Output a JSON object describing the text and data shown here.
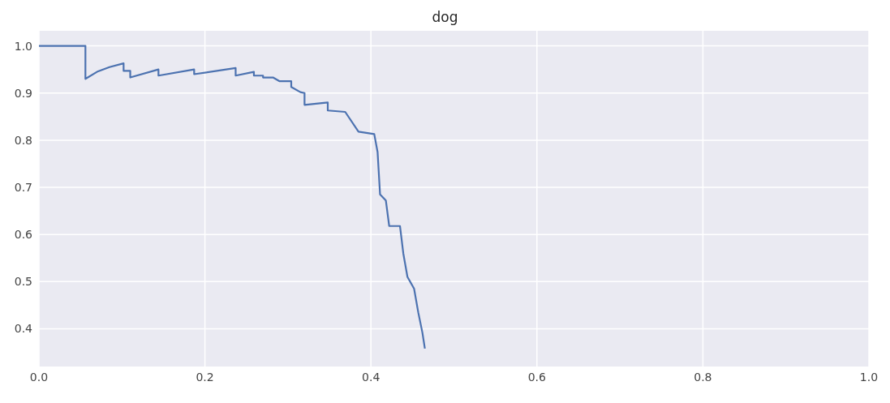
{
  "chart_data": {
    "type": "line",
    "title": "dog",
    "x": [
      0,
      0.056,
      0.056,
      0.07,
      0.085,
      0.102,
      0.102,
      0.11,
      0.11,
      0.144,
      0.144,
      0.187,
      0.187,
      0.237,
      0.237,
      0.259,
      0.259,
      0.27,
      0.27,
      0.282,
      0.29,
      0.304,
      0.304,
      0.315,
      0.32,
      0.32,
      0.348,
      0.348,
      0.369,
      0.385,
      0.404,
      0.408,
      0.411,
      0.418,
      0.422,
      0.435,
      0.439,
      0.444,
      0.452,
      0.457,
      0.462,
      0.465
    ],
    "series": [
      {
        "color": "#4c72b0",
        "values": [
          1,
          1,
          0.93,
          0.945,
          0.955,
          0.963,
          0.947,
          0.947,
          0.933,
          0.95,
          0.937,
          0.95,
          0.94,
          0.953,
          0.937,
          0.945,
          0.937,
          0.937,
          0.933,
          0.933,
          0.925,
          0.925,
          0.913,
          0.902,
          0.9,
          0.875,
          0.88,
          0.863,
          0.86,
          0.818,
          0.813,
          0.775,
          0.685,
          0.672,
          0.618,
          0.618,
          0.56,
          0.51,
          0.485,
          0.435,
          0.392,
          0.358
        ]
      }
    ],
    "xlim": [
      0,
      1
    ],
    "xticks": [
      {
        "value": 0,
        "label": "0.0"
      },
      0.2,
      0.4,
      0.6,
      0.8,
      {
        "value": 1,
        "label": "1.0"
      }
    ],
    "ylim": [
      0.32,
      1.032
    ],
    "yticks": [
      0.4,
      0.5,
      0.6,
      0.7,
      0.8,
      0.9,
      {
        "value": 1,
        "label": "1.0"
      }
    ],
    "grid": true,
    "marker": "none",
    "line_style": "solid"
  }
}
